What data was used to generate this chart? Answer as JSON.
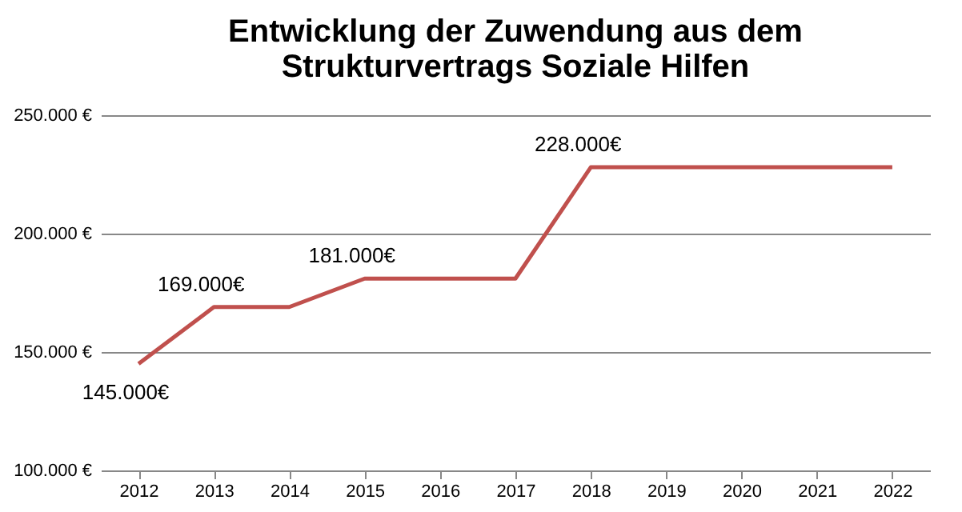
{
  "chart_data": {
    "type": "line",
    "title": "Entwicklung der Zuwendung aus dem Strukturvertrags Soziale Hilfen",
    "categories": [
      "2012",
      "2013",
      "2014",
      "2015",
      "2016",
      "2017",
      "2018",
      "2019",
      "2020",
      "2021",
      "2022"
    ],
    "values": [
      145000,
      169000,
      169000,
      181000,
      181000,
      181000,
      228000,
      228000,
      228000,
      228000,
      228000
    ],
    "value_labels": [
      "145.000€",
      "169.000€",
      null,
      "181.000€",
      null,
      null,
      "228.000€",
      null,
      null,
      null,
      null
    ],
    "color": "#c0504d",
    "ylim": [
      100000,
      250000
    ],
    "yticks": [
      {
        "value": 100000,
        "label": "100.000 €"
      },
      {
        "value": 150000,
        "label": "150.000 €"
      },
      {
        "value": 200000,
        "label": "200.000 €"
      },
      {
        "value": 250000,
        "label": "250.000 €"
      }
    ],
    "grid": "y",
    "marker": "none",
    "line_style": "solid"
  }
}
